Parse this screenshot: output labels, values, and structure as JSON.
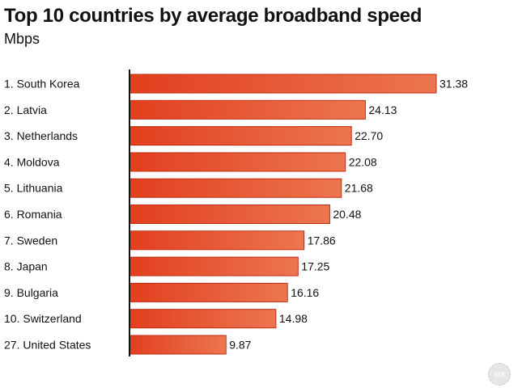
{
  "chart_data": {
    "type": "bar",
    "orientation": "horizontal",
    "title": "Top 10 countries by average broadband speed",
    "subtitle": "Mbps",
    "categories": [
      "1. South Korea",
      "2. Latvia",
      "3. Netherlands",
      "4. Moldova",
      "5. Lithuania",
      "6. Romania",
      "7. Sweden",
      "8. Japan",
      "9. Bulgaria",
      "10. Switzerland",
      "27. United States"
    ],
    "values": [
      31.38,
      24.13,
      22.7,
      22.08,
      21.68,
      20.48,
      17.86,
      17.25,
      16.16,
      14.98,
      9.87
    ],
    "value_labels": [
      "31.38",
      "24.13",
      "22.70",
      "22.08",
      "21.68",
      "20.48",
      "17.86",
      "17.25",
      "16.16",
      "14.98",
      "9.87"
    ],
    "xlim": [
      0,
      31.38
    ],
    "grid": false,
    "legend": "none",
    "colors": {
      "bar_fill_start": "#e23f1e",
      "bar_fill_end": "#ec7650",
      "bar_stroke": "#c02a10",
      "axis": "#111111"
    }
  },
  "footer": {
    "logo_text": "ars"
  }
}
